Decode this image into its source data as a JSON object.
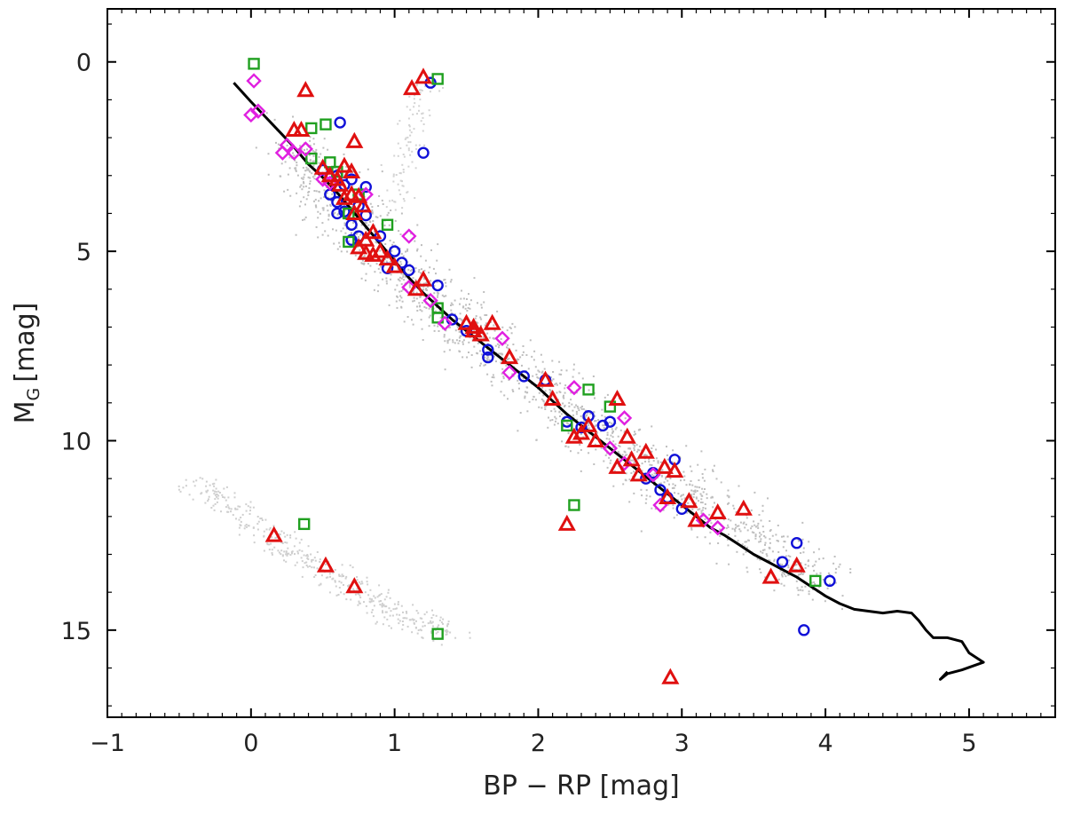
{
  "chart_data": {
    "type": "scatter",
    "title": "",
    "xlabel": {
      "main": "BP − RP",
      "unit": "[mag]"
    },
    "ylabel": {
      "base": "M",
      "sub": "G",
      "unit": "[mag]"
    },
    "xlim": [
      -1,
      5.6
    ],
    "ylim": [
      17.3,
      -1.4
    ],
    "y_inverted": true,
    "grid": false,
    "legend": "none",
    "x_ticks": [
      {
        "value": -1,
        "label": "−1"
      },
      {
        "value": 0,
        "label": "0"
      },
      {
        "value": 1,
        "label": "1"
      },
      {
        "value": 2,
        "label": "2"
      },
      {
        "value": 3,
        "label": "3"
      },
      {
        "value": 4,
        "label": "4"
      },
      {
        "value": 5,
        "label": "5"
      }
    ],
    "y_ticks": [
      {
        "value": 0,
        "label": "0"
      },
      {
        "value": 5,
        "label": "5"
      },
      {
        "value": 10,
        "label": "10"
      },
      {
        "value": 15,
        "label": "15"
      }
    ],
    "background_sequences": [
      {
        "name": "main sequence",
        "color": "#8a8a8a",
        "ridge": [
          [
            0.25,
            2.2
          ],
          [
            0.55,
            3.4
          ],
          [
            0.8,
            4.5
          ],
          [
            1.1,
            5.8
          ],
          [
            1.4,
            6.8
          ],
          [
            1.8,
            7.9
          ],
          [
            2.2,
            9.1
          ],
          [
            2.6,
            10.2
          ],
          [
            3.0,
            11.3
          ],
          [
            3.5,
            12.6
          ],
          [
            4.0,
            13.8
          ]
        ],
        "spread": 0.12,
        "density": 14
      },
      {
        "name": "white dwarf sequence",
        "color": "#a8a8a8",
        "ridge": [
          [
            -0.4,
            11.0
          ],
          [
            -0.1,
            11.9
          ],
          [
            0.2,
            12.7
          ],
          [
            0.5,
            13.4
          ],
          [
            0.8,
            14.1
          ],
          [
            1.1,
            14.7
          ],
          [
            1.4,
            15.1
          ]
        ],
        "spread": 0.06,
        "density": 6
      },
      {
        "name": "giant branch",
        "color": "#b0b0b0",
        "ridge": [
          [
            1.0,
            3.8
          ],
          [
            1.05,
            3.0
          ],
          [
            1.1,
            2.0
          ],
          [
            1.15,
            1.2
          ],
          [
            1.2,
            0.6
          ]
        ],
        "spread": 0.05,
        "density": 2
      }
    ],
    "series": [
      {
        "name": "isochrone",
        "kind": "line",
        "color": "#000000",
        "points": [
          [
            -0.12,
            0.55
          ],
          [
            0.0,
            1.05
          ],
          [
            0.1,
            1.45
          ],
          [
            0.2,
            1.85
          ],
          [
            0.3,
            2.25
          ],
          [
            0.4,
            2.7
          ],
          [
            0.5,
            3.05
          ],
          [
            0.6,
            3.45
          ],
          [
            0.7,
            3.9
          ],
          [
            0.8,
            4.35
          ],
          [
            0.9,
            4.8
          ],
          [
            1.0,
            5.25
          ],
          [
            1.1,
            5.7
          ],
          [
            1.2,
            6.1
          ],
          [
            1.3,
            6.45
          ],
          [
            1.4,
            6.8
          ],
          [
            1.5,
            7.1
          ],
          [
            1.6,
            7.4
          ],
          [
            1.7,
            7.7
          ],
          [
            1.8,
            8.0
          ],
          [
            1.9,
            8.3
          ],
          [
            2.0,
            8.6
          ],
          [
            2.1,
            8.95
          ],
          [
            2.2,
            9.3
          ],
          [
            2.3,
            9.6
          ],
          [
            2.4,
            9.9
          ],
          [
            2.5,
            10.2
          ],
          [
            2.6,
            10.5
          ],
          [
            2.7,
            10.8
          ],
          [
            2.8,
            11.1
          ],
          [
            2.9,
            11.4
          ],
          [
            3.0,
            11.7
          ],
          [
            3.1,
            12.0
          ],
          [
            3.2,
            12.3
          ],
          [
            3.3,
            12.5
          ],
          [
            3.4,
            12.75
          ],
          [
            3.5,
            13.0
          ],
          [
            3.6,
            13.2
          ],
          [
            3.7,
            13.4
          ],
          [
            3.8,
            13.6
          ],
          [
            3.9,
            13.85
          ],
          [
            4.0,
            14.1
          ],
          [
            4.1,
            14.3
          ],
          [
            4.2,
            14.45
          ],
          [
            4.3,
            14.5
          ],
          [
            4.4,
            14.55
          ],
          [
            4.5,
            14.5
          ],
          [
            4.6,
            14.55
          ],
          [
            4.65,
            14.75
          ],
          [
            4.7,
            15.0
          ],
          [
            4.75,
            15.2
          ],
          [
            4.85,
            15.2
          ],
          [
            4.95,
            15.3
          ],
          [
            5.0,
            15.6
          ],
          [
            5.1,
            15.85
          ],
          [
            4.95,
            16.05
          ],
          [
            4.85,
            16.15
          ],
          [
            4.8,
            16.3
          ],
          [
            4.85,
            16.1
          ]
        ]
      },
      {
        "name": "circles",
        "kind": "circle",
        "color": "#1010d8",
        "points": [
          [
            1.25,
            0.55
          ],
          [
            0.62,
            1.6
          ],
          [
            1.2,
            2.4
          ],
          [
            0.5,
            2.85
          ],
          [
            0.6,
            3.0
          ],
          [
            0.7,
            3.1
          ],
          [
            0.65,
            3.25
          ],
          [
            0.8,
            3.3
          ],
          [
            0.55,
            3.5
          ],
          [
            0.6,
            3.7
          ],
          [
            0.75,
            3.8
          ],
          [
            0.65,
            3.95
          ],
          [
            0.6,
            4.0
          ],
          [
            0.8,
            4.05
          ],
          [
            0.7,
            4.3
          ],
          [
            0.9,
            4.6
          ],
          [
            0.75,
            4.6
          ],
          [
            0.7,
            4.7
          ],
          [
            1.0,
            5.0
          ],
          [
            1.05,
            5.3
          ],
          [
            0.95,
            5.45
          ],
          [
            1.1,
            5.5
          ],
          [
            1.3,
            5.9
          ],
          [
            1.4,
            6.8
          ],
          [
            1.5,
            7.1
          ],
          [
            1.65,
            7.6
          ],
          [
            1.65,
            7.8
          ],
          [
            1.9,
            8.3
          ],
          [
            2.05,
            8.4
          ],
          [
            2.2,
            9.5
          ],
          [
            2.3,
            9.65
          ],
          [
            2.35,
            9.35
          ],
          [
            2.5,
            9.5
          ],
          [
            2.45,
            9.6
          ],
          [
            2.8,
            10.85
          ],
          [
            2.95,
            10.5
          ],
          [
            2.75,
            11.0
          ],
          [
            2.85,
            11.3
          ],
          [
            2.9,
            11.5
          ],
          [
            3.0,
            11.8
          ],
          [
            3.7,
            13.2
          ],
          [
            3.8,
            12.7
          ],
          [
            4.03,
            13.7
          ],
          [
            3.85,
            15.0
          ]
        ]
      },
      {
        "name": "squares",
        "kind": "square",
        "color": "#20a020",
        "points": [
          [
            0.02,
            0.05
          ],
          [
            1.3,
            0.45
          ],
          [
            0.52,
            1.65
          ],
          [
            0.42,
            1.75
          ],
          [
            0.42,
            2.55
          ],
          [
            0.55,
            2.65
          ],
          [
            0.6,
            2.9
          ],
          [
            0.75,
            3.5
          ],
          [
            0.68,
            4.0
          ],
          [
            0.95,
            4.3
          ],
          [
            0.68,
            4.75
          ],
          [
            1.3,
            6.5
          ],
          [
            1.3,
            6.75
          ],
          [
            2.35,
            8.65
          ],
          [
            2.5,
            9.1
          ],
          [
            2.2,
            9.6
          ],
          [
            2.25,
            11.7
          ],
          [
            0.37,
            12.2
          ],
          [
            3.93,
            13.7
          ],
          [
            1.3,
            15.1
          ]
        ]
      },
      {
        "name": "diamonds",
        "kind": "diamond",
        "color": "#e020e0",
        "points": [
          [
            0.02,
            0.5
          ],
          [
            0.05,
            1.3
          ],
          [
            0.0,
            1.4
          ],
          [
            0.25,
            2.2
          ],
          [
            0.3,
            2.4
          ],
          [
            0.38,
            2.3
          ],
          [
            0.22,
            2.4
          ],
          [
            0.5,
            3.1
          ],
          [
            0.55,
            3.2
          ],
          [
            0.8,
            3.5
          ],
          [
            1.1,
            4.6
          ],
          [
            1.1,
            5.95
          ],
          [
            1.25,
            6.3
          ],
          [
            1.35,
            6.9
          ],
          [
            1.75,
            7.3
          ],
          [
            1.8,
            8.2
          ],
          [
            2.25,
            8.6
          ],
          [
            2.6,
            9.4
          ],
          [
            2.5,
            10.2
          ],
          [
            2.6,
            10.6
          ],
          [
            2.8,
            10.9
          ],
          [
            2.85,
            11.7
          ],
          [
            3.15,
            12.1
          ],
          [
            3.25,
            12.3
          ]
        ]
      },
      {
        "name": "triangles",
        "kind": "triangle",
        "color": "#e01010",
        "points": [
          [
            0.38,
            0.75
          ],
          [
            1.2,
            0.4
          ],
          [
            1.12,
            0.7
          ],
          [
            0.3,
            1.8
          ],
          [
            0.35,
            1.8
          ],
          [
            0.72,
            2.1
          ],
          [
            0.5,
            2.8
          ],
          [
            0.55,
            3.0
          ],
          [
            0.6,
            3.1
          ],
          [
            0.65,
            2.75
          ],
          [
            0.7,
            2.9
          ],
          [
            0.62,
            3.25
          ],
          [
            0.7,
            3.5
          ],
          [
            0.65,
            3.6
          ],
          [
            0.75,
            3.55
          ],
          [
            0.78,
            3.8
          ],
          [
            0.72,
            4.0
          ],
          [
            0.85,
            4.5
          ],
          [
            0.8,
            4.7
          ],
          [
            0.75,
            4.9
          ],
          [
            0.9,
            5.0
          ],
          [
            0.85,
            5.1
          ],
          [
            0.95,
            5.2
          ],
          [
            0.8,
            5.05
          ],
          [
            1.0,
            5.4
          ],
          [
            1.2,
            5.75
          ],
          [
            1.15,
            6.0
          ],
          [
            1.5,
            6.9
          ],
          [
            1.55,
            7.0
          ],
          [
            1.6,
            7.2
          ],
          [
            1.68,
            6.9
          ],
          [
            1.55,
            7.1
          ],
          [
            1.8,
            7.8
          ],
          [
            2.05,
            8.4
          ],
          [
            2.1,
            8.9
          ],
          [
            2.35,
            9.6
          ],
          [
            2.3,
            9.8
          ],
          [
            2.25,
            9.9
          ],
          [
            2.4,
            10.0
          ],
          [
            2.55,
            8.9
          ],
          [
            2.62,
            9.9
          ],
          [
            2.65,
            10.5
          ],
          [
            2.55,
            10.7
          ],
          [
            2.75,
            10.3
          ],
          [
            2.88,
            10.7
          ],
          [
            2.95,
            10.8
          ],
          [
            2.7,
            10.9
          ],
          [
            2.9,
            11.5
          ],
          [
            3.05,
            11.6
          ],
          [
            3.1,
            12.1
          ],
          [
            3.25,
            11.9
          ],
          [
            3.43,
            11.8
          ],
          [
            3.62,
            13.6
          ],
          [
            3.8,
            13.3
          ],
          [
            2.2,
            12.2
          ],
          [
            0.16,
            12.5
          ],
          [
            0.52,
            13.3
          ],
          [
            0.72,
            13.85
          ],
          [
            2.92,
            16.25
          ]
        ]
      }
    ]
  }
}
